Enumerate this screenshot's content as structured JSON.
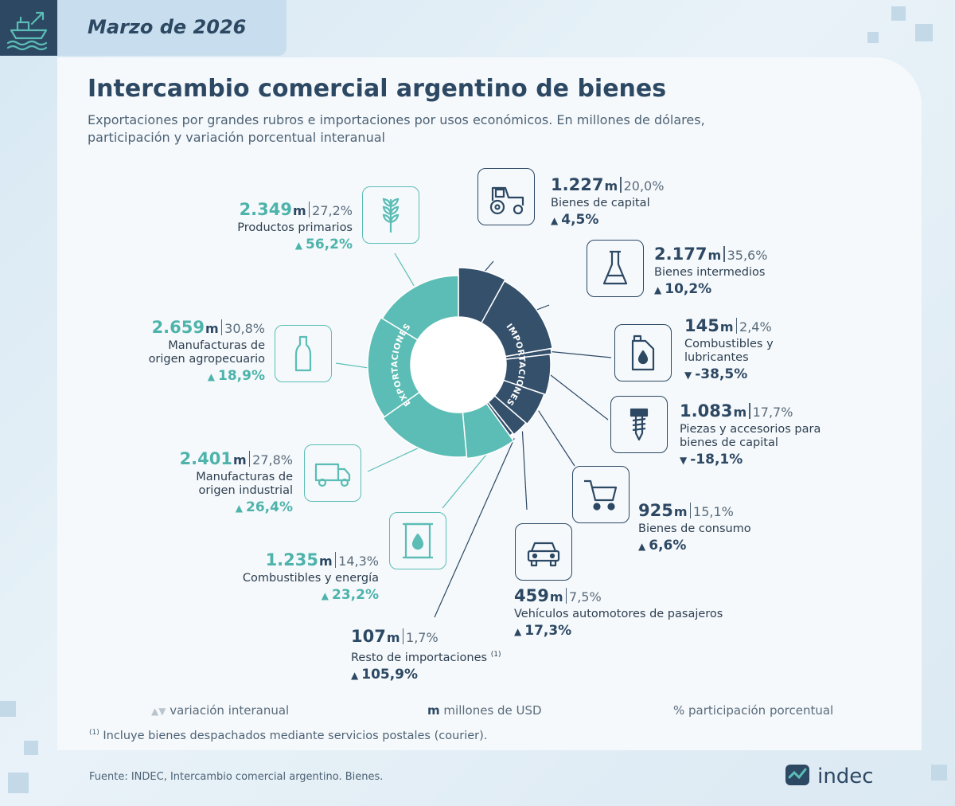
{
  "header": {
    "date": "Marzo de 2026",
    "icon": "ship-export-icon"
  },
  "title": "Intercambio comercial argentino de bienes",
  "subtitle": "Exportaciones por grandes rubros e importaciones por usos económicos. En millones de dólares, participación y variación porcentual interanual",
  "unit_m": "m",
  "colors": {
    "exportaciones": "#5bbdb5",
    "importaciones": "#34506b",
    "navy": "#2d4863",
    "teal_text": "#4eb3ab"
  },
  "chart_data": {
    "type": "pie",
    "title": "Intercambio comercial argentino de bienes",
    "center_labels": {
      "left": "EXPORTACIONES",
      "right": "IMPORTACIONES"
    },
    "series": [
      {
        "name": "EXPORTACIONES",
        "items": [
          {
            "label": "Productos primarios",
            "value": "2.349",
            "value_num": 2349,
            "share": "27,2%",
            "change": "56,2%",
            "direction": "up",
            "icon": "wheat-icon"
          },
          {
            "label": "Manufacturas de origen agropecuario",
            "lines": [
              "Manufacturas de",
              "origen agropecuario"
            ],
            "value": "2.659",
            "value_num": 2659,
            "share": "30,8%",
            "change": "18,9%",
            "direction": "up",
            "icon": "bottle-icon"
          },
          {
            "label": "Manufacturas de origen industrial",
            "lines": [
              "Manufacturas de",
              "origen industrial"
            ],
            "value": "2.401",
            "value_num": 2401,
            "share": "27,8%",
            "change": "26,4%",
            "direction": "up",
            "icon": "truck-icon"
          },
          {
            "label": "Combustibles y energía",
            "value": "1.235",
            "value_num": 1235,
            "share": "14,3%",
            "change": "23,2%",
            "direction": "up",
            "icon": "oil-barrel-icon"
          }
        ]
      },
      {
        "name": "IMPORTACIONES",
        "items": [
          {
            "label": "Bienes de capital",
            "value": "1.227",
            "value_num": 1227,
            "share": "20,0%",
            "change": "4,5%",
            "direction": "up",
            "icon": "tractor-icon"
          },
          {
            "label": "Bienes intermedios",
            "value": "2.177",
            "value_num": 2177,
            "share": "35,6%",
            "change": "10,2%",
            "direction": "up",
            "icon": "flask-icon"
          },
          {
            "label": "Combustibles y lubricantes",
            "lines": [
              "Combustibles y",
              "lubricantes"
            ],
            "value": "145",
            "value_num": 145,
            "share": "2,4%",
            "change": "-38,5%",
            "direction": "down",
            "icon": "oil-can-icon"
          },
          {
            "label": "Piezas y accesorios para bienes de capital",
            "lines": [
              "Piezas y accesorios para",
              "bienes de capital"
            ],
            "value": "1.083",
            "value_num": 1083,
            "share": "17,7%",
            "change": "-18,1%",
            "direction": "down",
            "icon": "screw-icon"
          },
          {
            "label": "Bienes de consumo",
            "value": "925",
            "value_num": 925,
            "share": "15,1%",
            "change": "6,6%",
            "direction": "up",
            "icon": "cart-icon"
          },
          {
            "label": "Vehículos automotores de pasajeros",
            "value": "459",
            "value_num": 459,
            "share": "7,5%",
            "change": "17,3%",
            "direction": "up",
            "icon": "car-icon"
          },
          {
            "label": "Resto de importaciones",
            "note_mark": "(1)",
            "value": "107",
            "value_num": 107,
            "share": "1,7%",
            "change": "105,9%",
            "direction": "up"
          }
        ]
      }
    ]
  },
  "legend": {
    "variation": "variación interanual",
    "m_symbol": "m",
    "millions": "millones de USD",
    "percent": "% participación porcentual"
  },
  "footnote": {
    "mark": "(1)",
    "text": "Incluye bienes despachados mediante servicios postales (courier)."
  },
  "source": "Fuente: INDEC, Intercambio comercial argentino. Bienes.",
  "logo": {
    "text": "indec",
    "icon": "indec-logo-icon"
  }
}
